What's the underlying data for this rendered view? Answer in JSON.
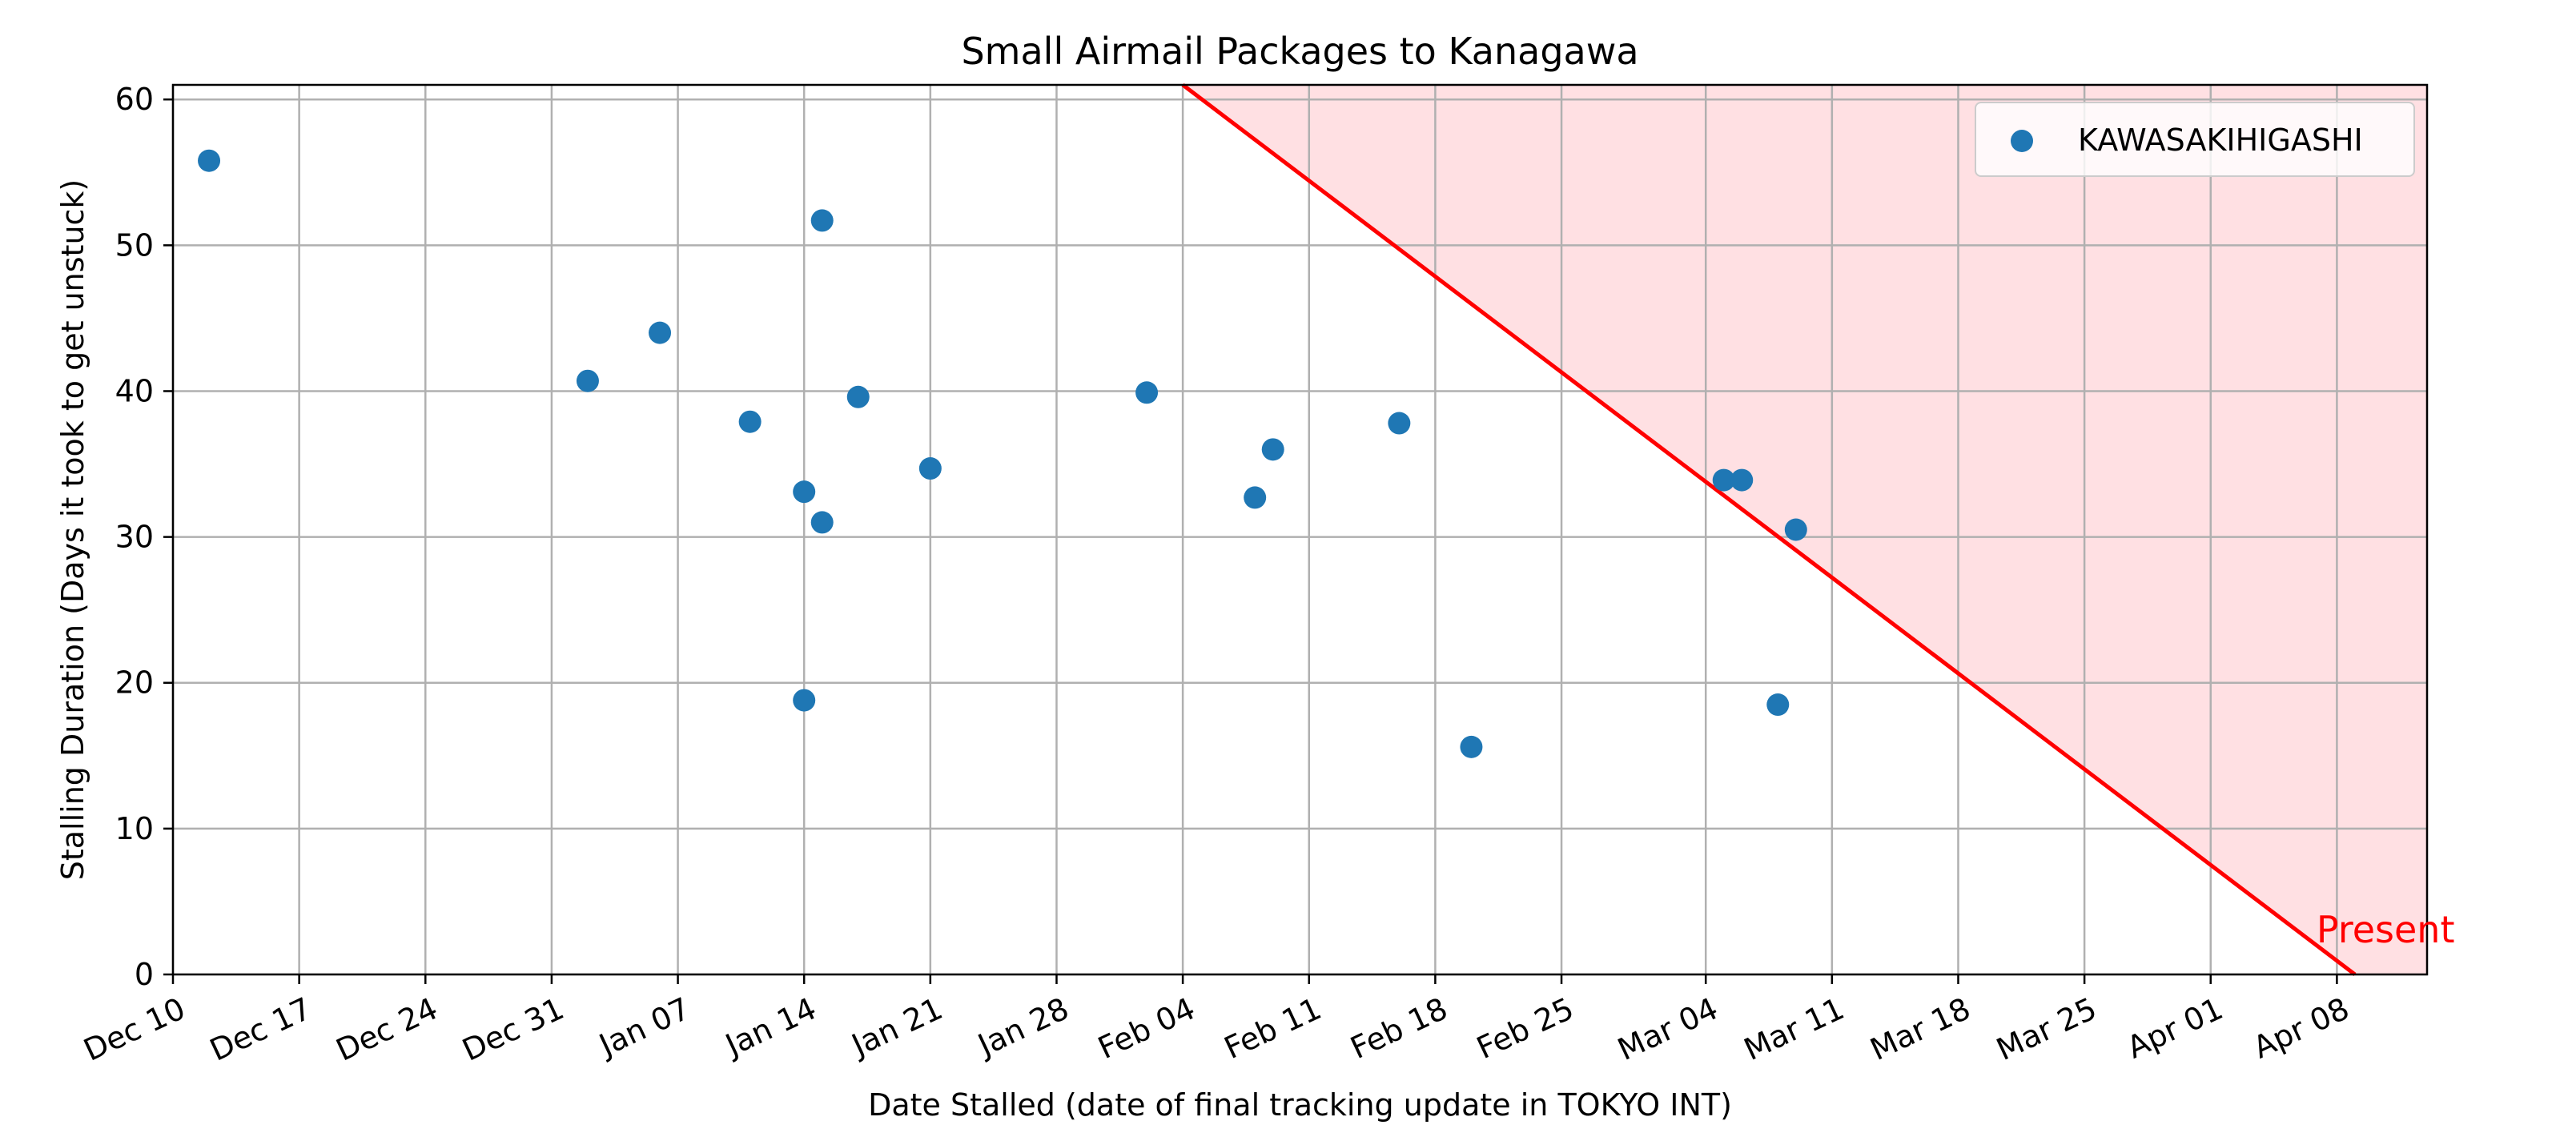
{
  "chart_data": {
    "type": "scatter",
    "title": "Small Airmail Packages to Kanagawa",
    "xlabel": "Date Stalled (date of final tracking update in TOKYO INT)",
    "ylabel": "Stalling Duration (Days it took to get unstuck)",
    "x_axis_type": "date",
    "xlim": [
      "2023-12-10",
      "2024-04-13"
    ],
    "ylim": [
      0,
      61
    ],
    "x_ticks": [
      "2023-12-10",
      "2023-12-17",
      "2023-12-24",
      "2023-12-31",
      "2024-01-07",
      "2024-01-14",
      "2024-01-21",
      "2024-01-28",
      "2024-02-04",
      "2024-02-11",
      "2024-02-18",
      "2024-02-25",
      "2024-03-04",
      "2024-03-11",
      "2024-03-18",
      "2024-03-25",
      "2024-04-01",
      "2024-04-08"
    ],
    "x_tick_labels": [
      "Dec 10",
      "Dec 17",
      "Dec 24",
      "Dec 31",
      "Jan 07",
      "Jan 14",
      "Jan 21",
      "Jan 28",
      "Feb 04",
      "Feb 11",
      "Feb 18",
      "Feb 25",
      "Mar 04",
      "Mar 11",
      "Mar 18",
      "Mar 25",
      "Apr 01",
      "Apr 08"
    ],
    "y_ticks": [
      0,
      10,
      20,
      30,
      40,
      50,
      60
    ],
    "y_tick_labels": [
      "0",
      "10",
      "20",
      "30",
      "40",
      "50",
      "60"
    ],
    "grid": true,
    "legend_position": "top-right",
    "series": [
      {
        "name": "KAWASAKIHIGASHI",
        "color": "#1f77b4",
        "points": [
          {
            "x": "2023-12-12",
            "y": 55.8
          },
          {
            "x": "2024-01-02",
            "y": 40.7
          },
          {
            "x": "2024-01-06",
            "y": 44.0
          },
          {
            "x": "2024-01-11",
            "y": 37.9
          },
          {
            "x": "2024-01-14",
            "y": 33.1
          },
          {
            "x": "2024-01-15",
            "y": 31.0
          },
          {
            "x": "2024-01-14",
            "y": 18.8
          },
          {
            "x": "2024-01-15",
            "y": 51.7
          },
          {
            "x": "2024-01-17",
            "y": 39.6
          },
          {
            "x": "2024-01-21",
            "y": 34.7
          },
          {
            "x": "2024-02-02",
            "y": 39.9
          },
          {
            "x": "2024-02-08",
            "y": 32.7
          },
          {
            "x": "2024-02-09",
            "y": 36.0
          },
          {
            "x": "2024-02-16",
            "y": 37.8
          },
          {
            "x": "2024-02-20",
            "y": 15.6
          },
          {
            "x": "2024-03-05",
            "y": 33.9
          },
          {
            "x": "2024-03-06",
            "y": 33.9
          },
          {
            "x": "2024-03-08",
            "y": 18.5
          },
          {
            "x": "2024-03-09",
            "y": 30.5
          }
        ]
      }
    ],
    "reference_line": {
      "color": "#ff0000",
      "fill_color": "#ffe0e3",
      "points": [
        {
          "x": "2024-02-04",
          "y": 61
        },
        {
          "x": "2024-04-09",
          "y": 0
        }
      ],
      "label": "Present"
    }
  }
}
